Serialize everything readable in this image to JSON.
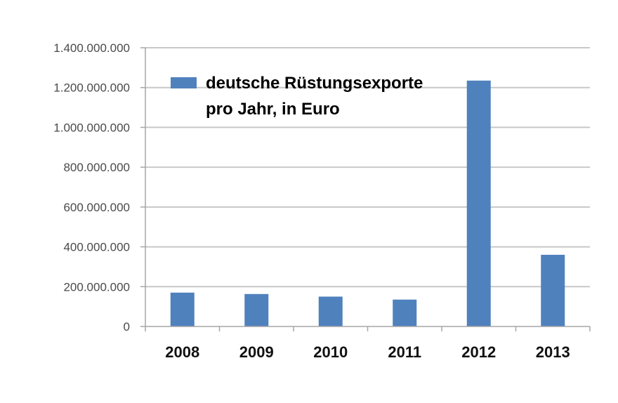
{
  "chart_data": {
    "type": "bar",
    "categories": [
      "2008",
      "2009",
      "2010",
      "2011",
      "2012",
      "2013"
    ],
    "series": [
      {
        "name_lines": [
          "deutsche Rüstungsexporte",
          "pro Jahr, in Euro"
        ],
        "values": [
          170000000,
          163000000,
          150000000,
          135000000,
          1235000000,
          360000000
        ],
        "color": "#4f81bd"
      }
    ],
    "ylim": [
      0,
      1400000000
    ],
    "yticks": [
      0,
      200000000,
      400000000,
      600000000,
      800000000,
      1000000000,
      1200000000,
      1400000000
    ],
    "ytick_labels": [
      "0",
      "200.000.000",
      "400.000.000",
      "600.000.000",
      "800.000.000",
      "1.000.000.000",
      "1.200.000.000",
      "1.400.000.000"
    ],
    "grid": true,
    "legend_position": "top-left",
    "gridline_color": "#c8c8c8",
    "axis_color": "#a6a6a6"
  }
}
